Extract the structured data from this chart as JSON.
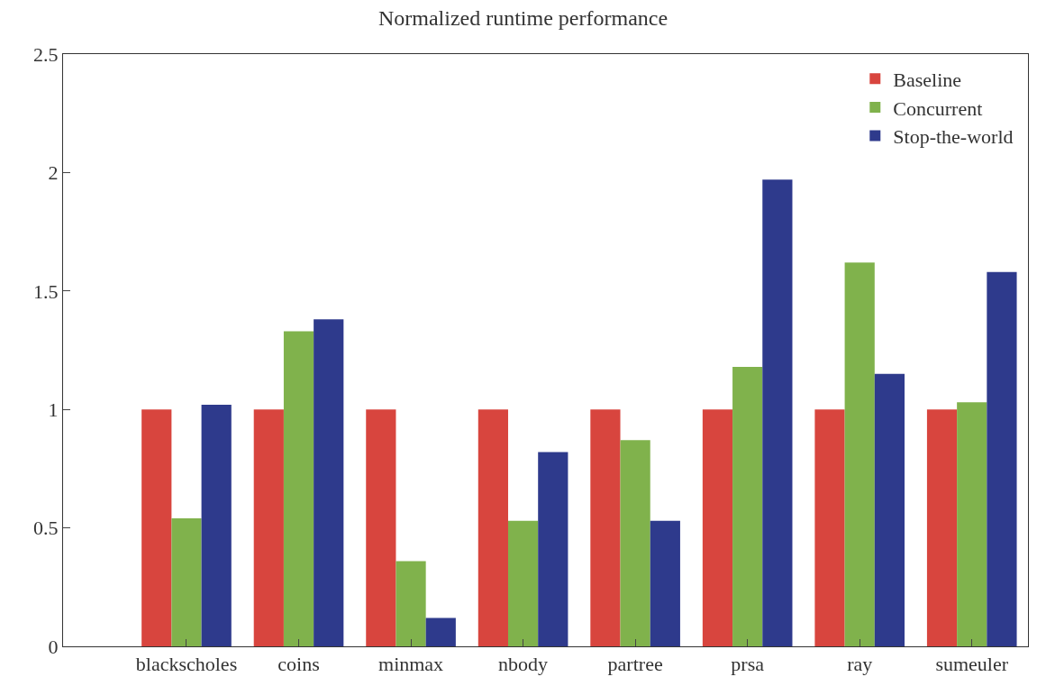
{
  "chart_data": {
    "type": "bar",
    "title": "Normalized runtime performance",
    "categories": [
      "blackscholes",
      "coins",
      "minmax",
      "nbody",
      "partree",
      "prsa",
      "ray",
      "sumeuler"
    ],
    "series": [
      {
        "name": "Baseline",
        "color": "#d8453e",
        "values": [
          1,
          1,
          1,
          1,
          1,
          1,
          1,
          1
        ]
      },
      {
        "name": "Concurrent",
        "color": "#80b24c",
        "values": [
          0.54,
          1.33,
          0.36,
          0.53,
          0.87,
          1.18,
          1.62,
          1.03
        ]
      },
      {
        "name": "Stop-the-world",
        "color": "#2e3a8c",
        "values": [
          1.02,
          1.38,
          0.12,
          0.82,
          0.53,
          1.97,
          1.15,
          1.58
        ]
      }
    ],
    "ylim": [
      0,
      2.5
    ],
    "yticks": [
      0,
      0.5,
      1,
      1.5,
      2,
      2.5
    ],
    "legend": "top right"
  }
}
